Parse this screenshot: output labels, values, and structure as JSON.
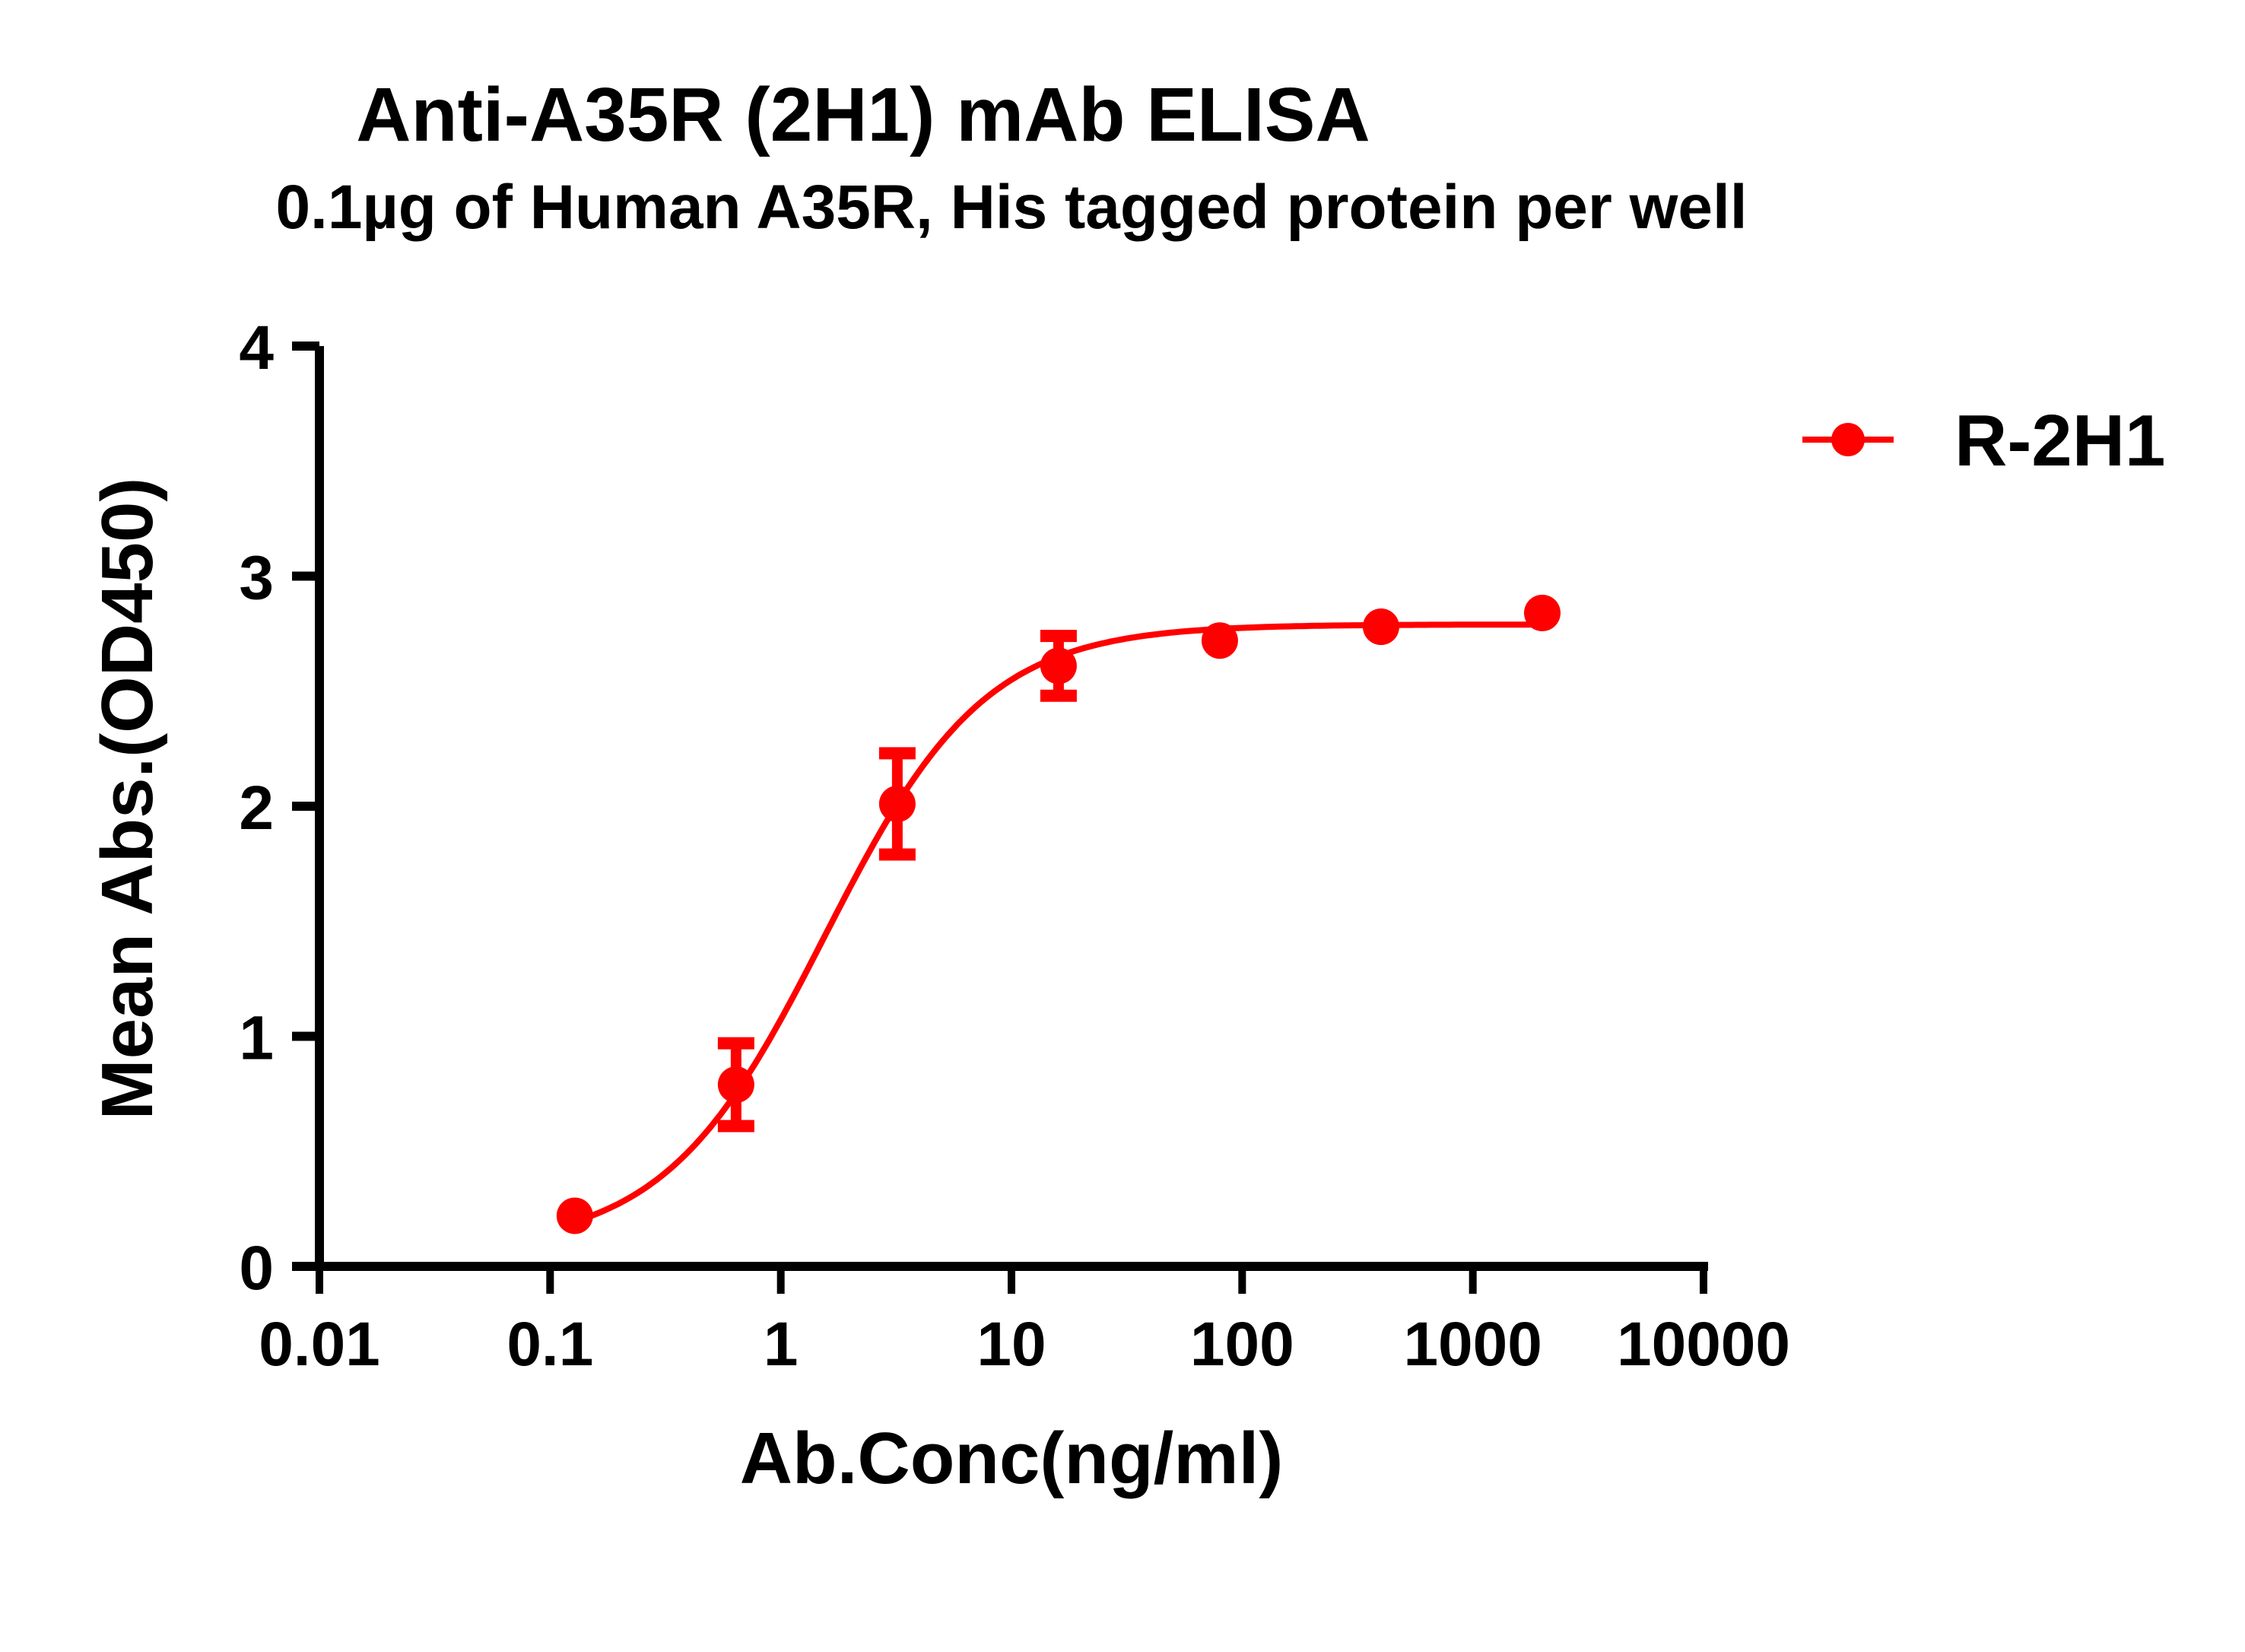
{
  "chart_data": {
    "type": "line",
    "title": "Anti-A35R (2H1) mAb ELISA",
    "subtitle": "0.1µg of Human A35R, His tagged protein per well",
    "xlabel": "Ab.Conc(ng/ml)",
    "ylabel": "Mean Abs.(OD450)",
    "xscale": "log",
    "xlim": [
      0.01,
      10000
    ],
    "ylim": [
      0,
      4
    ],
    "x_tick_labels": [
      "0.01",
      "0.1",
      "1",
      "10",
      "100",
      "1000",
      "10000"
    ],
    "y_tick_labels": [
      "0",
      "1",
      "2",
      "3",
      "4"
    ],
    "grid": false,
    "legend_position": "right-top",
    "series": [
      {
        "name": "R-2H1",
        "color": "#ff0000",
        "marker": "circle",
        "fit": "4PL sigmoidal curve",
        "x": [
          0.128,
          0.64,
          3.2,
          16,
          80,
          400,
          2000
        ],
        "y": [
          0.22,
          0.79,
          2.01,
          2.61,
          2.72,
          2.78,
          2.84
        ],
        "error": [
          0.02,
          0.18,
          0.22,
          0.13,
          0.03,
          0.03,
          0.03
        ]
      }
    ]
  }
}
